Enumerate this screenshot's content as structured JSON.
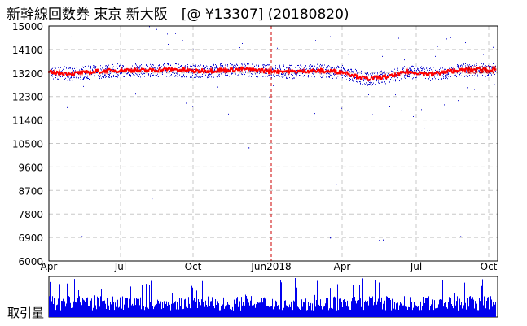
{
  "title": "新幹線回数券 東京 新大阪　[@ ¥13307] (20180820)",
  "volume_label": "取引量",
  "colors": {
    "price": "#ff0000",
    "trades": "#0000cc",
    "volume": "#0000ee",
    "grid": "#c8c8c8",
    "marker": "#cc0000"
  },
  "chart_data": {
    "type": "scatter",
    "title": "新幹線回数券 東京 新大阪　[@ ¥13307] (20180820)",
    "ylim": [
      6000,
      15000
    ],
    "y_ticks": [
      "15000",
      "14100",
      "13200",
      "12300",
      "11400",
      "10500",
      "9600",
      "8700",
      "7800",
      "6900",
      "6000"
    ],
    "x_ticks": [
      "Apr",
      "Jul",
      "Oct",
      "Jun2018",
      "Apr",
      "Jul",
      "Oct"
    ],
    "grid": true,
    "last_value": 13307,
    "last_value_label": "13307",
    "marker_label": "Jun2018",
    "series": [
      {
        "values": [
          [
            0,
            13230
          ],
          [
            30,
            13180
          ],
          [
            60,
            13260
          ],
          [
            90,
            13320
          ],
          [
            120,
            13300
          ],
          [
            150,
            13350
          ],
          [
            180,
            13280
          ],
          [
            210,
            13310
          ],
          [
            240,
            13350
          ],
          [
            270,
            13280
          ],
          [
            300,
            13260
          ],
          [
            330,
            13290
          ],
          [
            360,
            13250
          ],
          [
            390,
            12980
          ],
          [
            420,
            13080
          ],
          [
            440,
            13240
          ],
          [
            470,
            13170
          ],
          [
            500,
            13300
          ],
          [
            530,
            13350
          ],
          [
            548,
            13307
          ]
        ]
      }
    ]
  }
}
